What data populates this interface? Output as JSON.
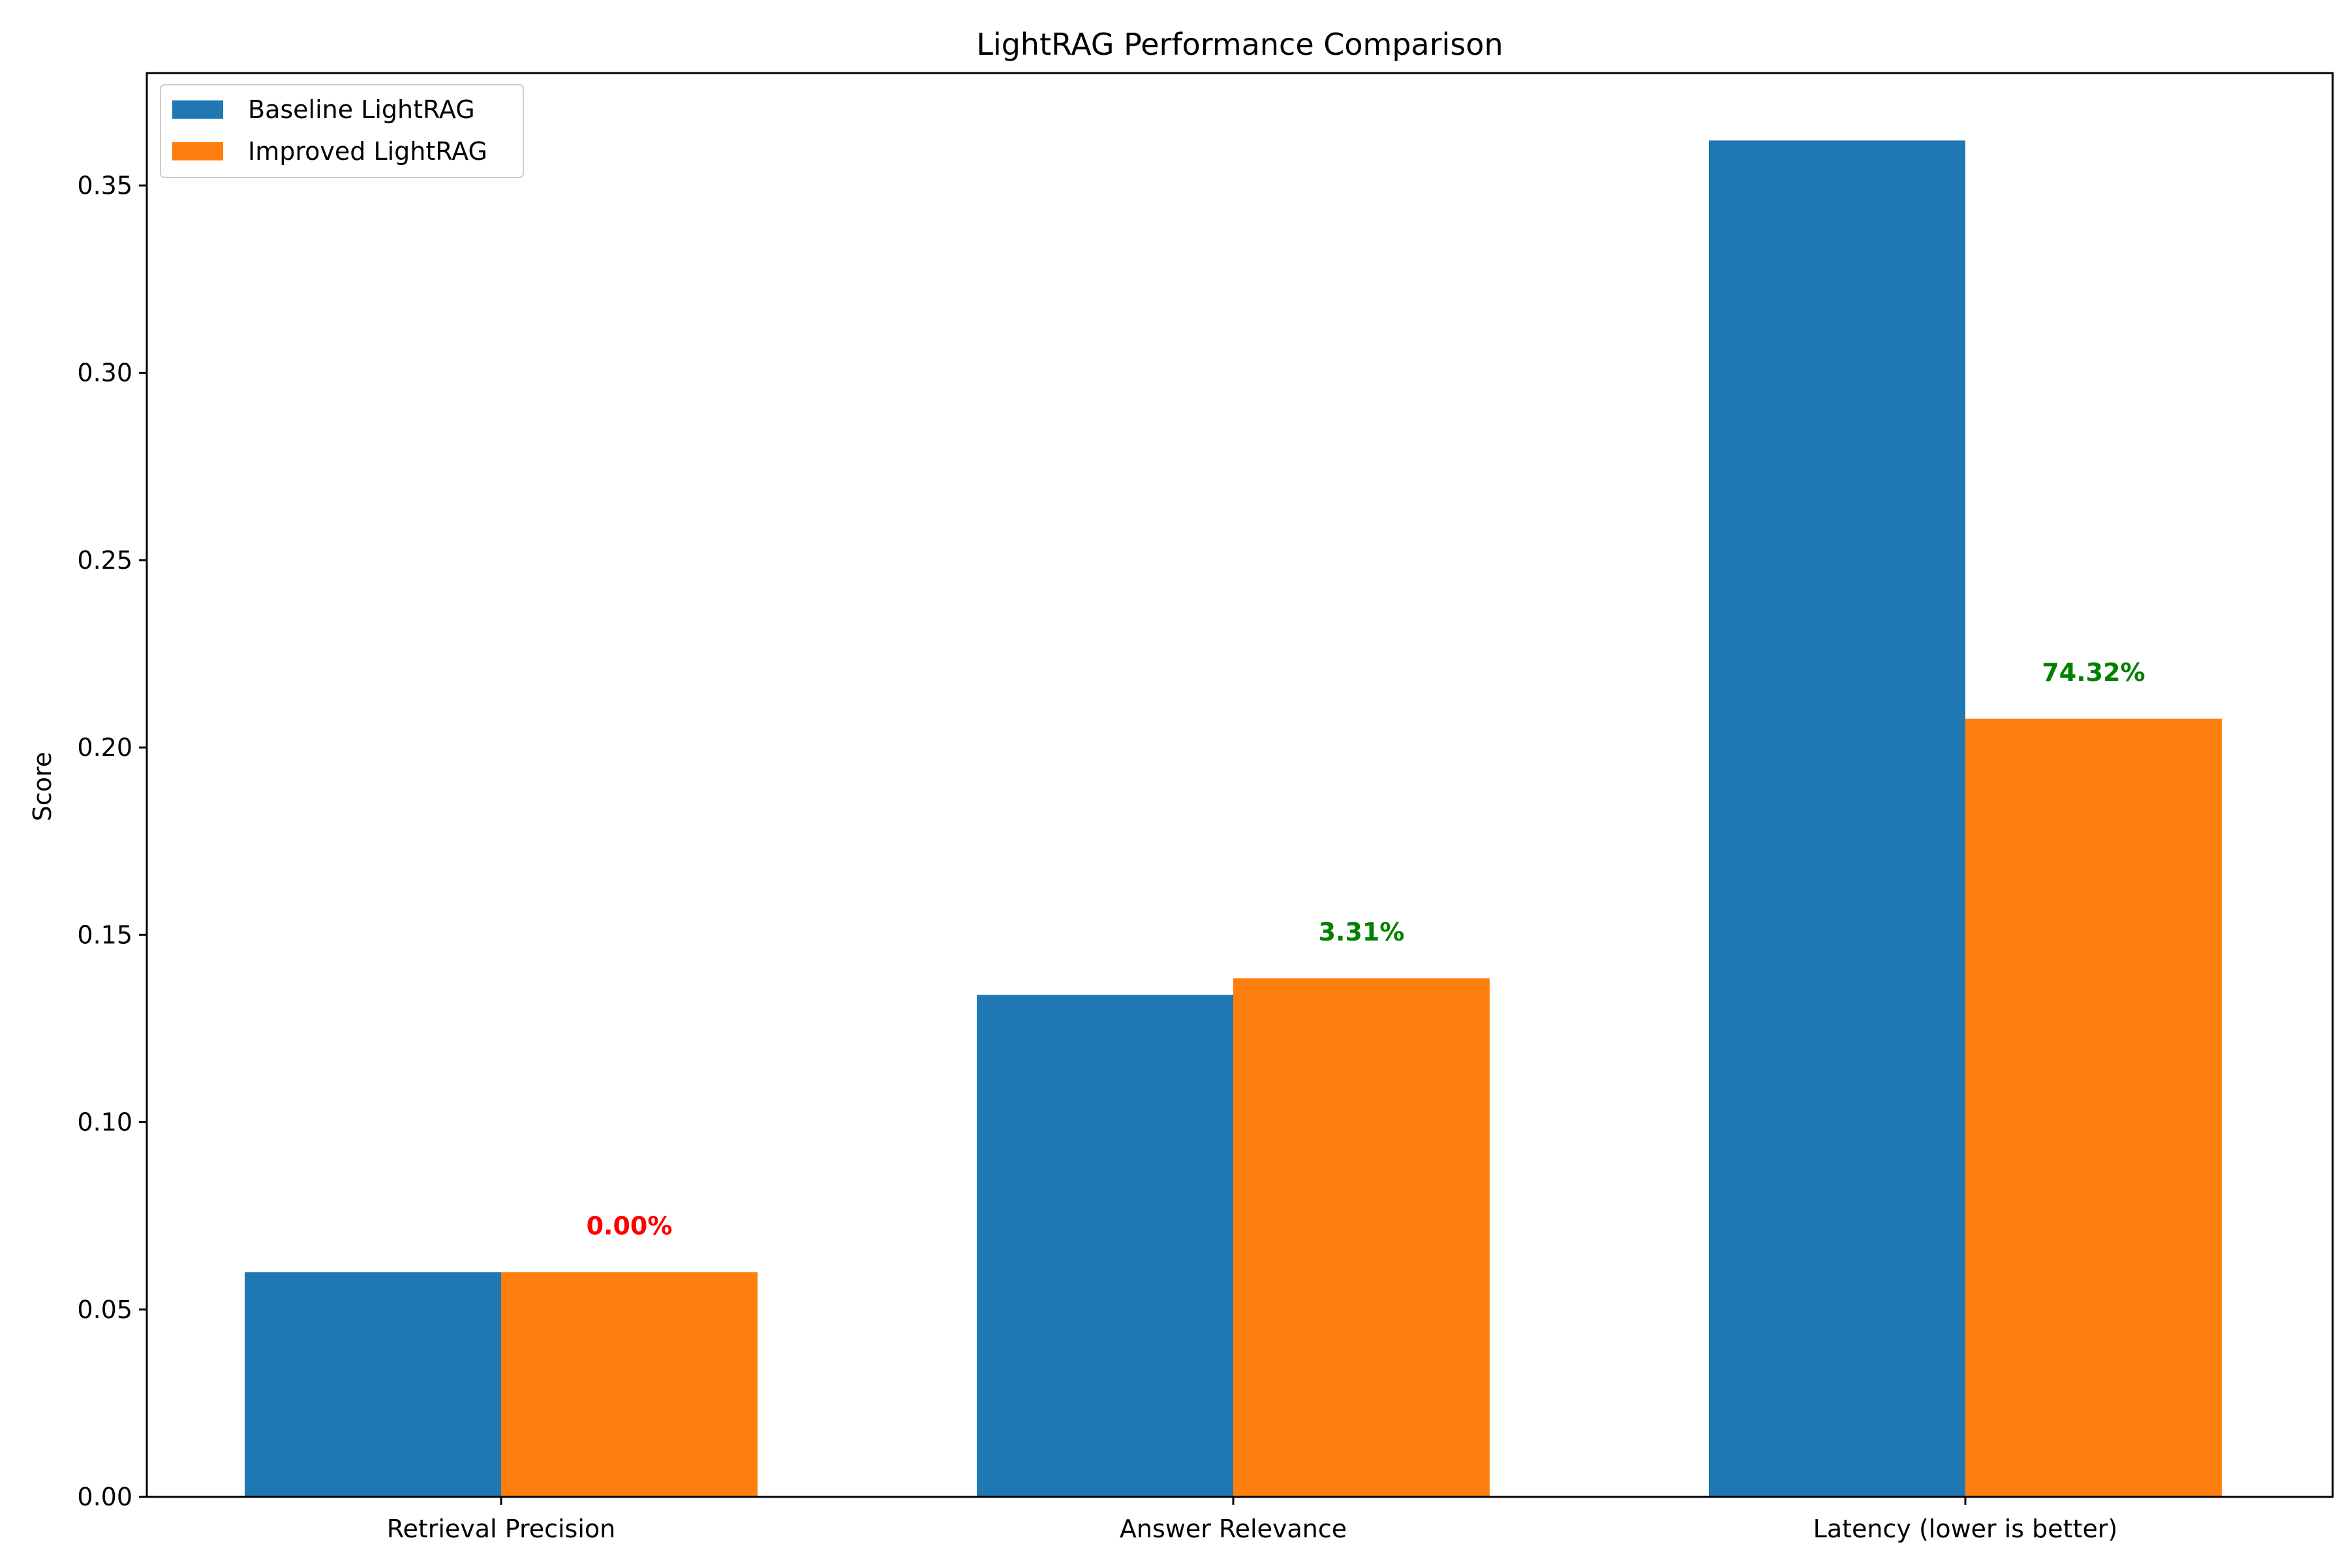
{
  "chart_data": {
    "type": "bar",
    "title": "LightRAG Performance Comparison",
    "xlabel": "",
    "ylabel": "Score",
    "ylim": [
      0,
      0.38
    ],
    "yticks": [
      "0.00",
      "0.05",
      "0.10",
      "0.15",
      "0.20",
      "0.25",
      "0.30",
      "0.35"
    ],
    "categories": [
      "Retrieval Precision",
      "Answer Relevance",
      "Latency (lower is better)"
    ],
    "series": [
      {
        "name": "Baseline LightRAG",
        "color": "#1f77b4",
        "values": [
          0.06,
          0.134,
          0.362
        ]
      },
      {
        "name": "Improved LightRAG",
        "color": "#ff7f0e",
        "values": [
          0.06,
          0.1384,
          0.2077
        ]
      }
    ],
    "annotations": [
      {
        "text": "0.00%",
        "color": "#ff0000"
      },
      {
        "text": "3.31%",
        "color": "#008000"
      },
      {
        "text": "74.32%",
        "color": "#008000"
      }
    ],
    "legend_position": "top-left",
    "grid": false
  }
}
